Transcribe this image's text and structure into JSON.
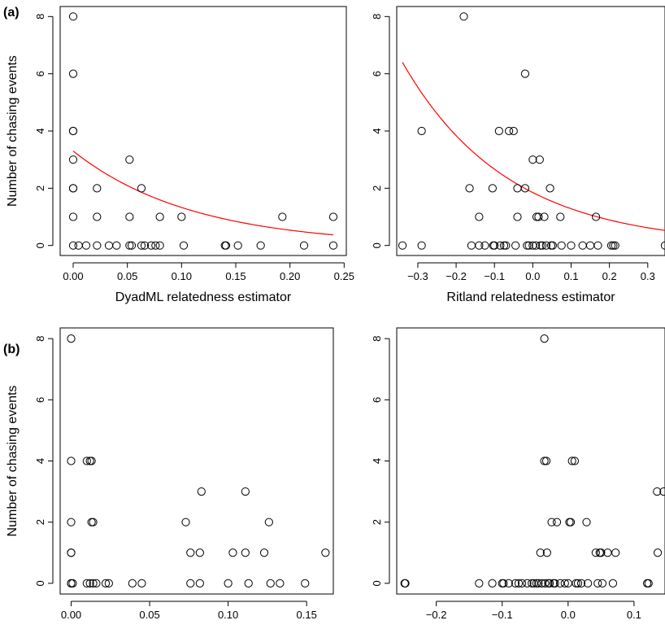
{
  "panel_labels": [
    "(a)",
    "(b)"
  ],
  "chart_data": [
    {
      "type": "scatter",
      "panel": "(a)",
      "xlabel": "DyadML relatedness estimator",
      "ylabel": "Number of chasing events",
      "xlim": [
        -0.012,
        0.252
      ],
      "ylim": [
        -0.35,
        8.35
      ],
      "xticks": [
        0,
        0.05,
        0.1,
        0.15,
        0.2,
        0.25
      ],
      "xticklabels": [
        "0.00",
        "0.05",
        "0.10",
        "0.15",
        "0.20",
        "0.25"
      ],
      "yticks": [
        0,
        2,
        4,
        6,
        8
      ],
      "yticklabels": [
        "0",
        "2",
        "4",
        "6",
        "8"
      ],
      "fit_curve": {
        "color": "#ff0000",
        "intercept_at_x0": 3.3,
        "log_slope": -9.1,
        "x_range": [
          0,
          0.24
        ]
      },
      "points": [
        [
          0,
          8
        ],
        [
          0,
          6
        ],
        [
          0,
          4
        ],
        [
          0,
          4
        ],
        [
          0,
          3
        ],
        [
          0,
          2
        ],
        [
          0,
          2
        ],
        [
          0,
          1
        ],
        [
          0,
          0
        ],
        [
          0.005,
          0
        ],
        [
          0.012,
          0
        ],
        [
          0.022,
          2
        ],
        [
          0.022,
          1
        ],
        [
          0.022,
          0
        ],
        [
          0.033,
          0
        ],
        [
          0.04,
          0
        ],
        [
          0.052,
          3
        ],
        [
          0.052,
          1
        ],
        [
          0.052,
          0
        ],
        [
          0.054,
          0
        ],
        [
          0.063,
          2
        ],
        [
          0.063,
          0
        ],
        [
          0.066,
          0
        ],
        [
          0.072,
          0
        ],
        [
          0.076,
          0
        ],
        [
          0.08,
          1
        ],
        [
          0.08,
          0
        ],
        [
          0.1,
          1
        ],
        [
          0.102,
          0
        ],
        [
          0.14,
          0
        ],
        [
          0.141,
          0
        ],
        [
          0.152,
          0
        ],
        [
          0.173,
          0
        ],
        [
          0.193,
          1
        ],
        [
          0.213,
          0
        ],
        [
          0.24,
          1
        ],
        [
          0.24,
          0
        ]
      ]
    },
    {
      "type": "scatter",
      "panel": "(a)",
      "xlabel": "Ritland relatedness estimator",
      "ylabel": "",
      "xlim": [
        -0.355,
        0.345
      ],
      "ylim": [
        -0.35,
        8.35
      ],
      "xticks": [
        -0.3,
        -0.2,
        -0.1,
        0,
        0.1,
        0.2,
        0.3
      ],
      "xticklabels": [
        "−0.3",
        "−0.2",
        "−0.1",
        "0.0",
        "0.1",
        "0.2",
        "0.3"
      ],
      "yticks": [
        0,
        2,
        4,
        6,
        8
      ],
      "yticklabels": [
        "0",
        "2",
        "4",
        "6",
        "8"
      ],
      "fit_curve": {
        "color": "#ff0000",
        "intercept_at_x0": 1.85,
        "log_slope": -3.65,
        "x_range": [
          -0.34,
          0.345
        ]
      },
      "points": [
        [
          -0.34,
          0
        ],
        [
          -0.29,
          4
        ],
        [
          -0.29,
          0
        ],
        [
          -0.18,
          8
        ],
        [
          -0.165,
          2
        ],
        [
          -0.16,
          0
        ],
        [
          -0.14,
          1
        ],
        [
          -0.14,
          0
        ],
        [
          -0.125,
          0
        ],
        [
          -0.105,
          2
        ],
        [
          -0.103,
          0
        ],
        [
          -0.1,
          0
        ],
        [
          -0.088,
          4
        ],
        [
          -0.085,
          0
        ],
        [
          -0.075,
          0
        ],
        [
          -0.07,
          0
        ],
        [
          -0.062,
          4
        ],
        [
          -0.05,
          4
        ],
        [
          -0.045,
          0
        ],
        [
          -0.04,
          2
        ],
        [
          -0.04,
          1
        ],
        [
          -0.02,
          6
        ],
        [
          -0.02,
          2
        ],
        [
          -0.015,
          0
        ],
        [
          -0.01,
          0
        ],
        [
          0,
          3
        ],
        [
          0,
          0
        ],
        [
          0.008,
          0
        ],
        [
          0.01,
          1
        ],
        [
          0.015,
          1
        ],
        [
          0.018,
          3
        ],
        [
          0.02,
          0
        ],
        [
          0.025,
          0
        ],
        [
          0.03,
          1
        ],
        [
          0.035,
          0
        ],
        [
          0.045,
          2
        ],
        [
          0.048,
          0
        ],
        [
          0.052,
          0
        ],
        [
          0.072,
          1
        ],
        [
          0.075,
          0
        ],
        [
          0.1,
          0
        ],
        [
          0.13,
          0
        ],
        [
          0.15,
          0
        ],
        [
          0.165,
          1
        ],
        [
          0.17,
          0
        ],
        [
          0.205,
          0
        ],
        [
          0.21,
          0
        ],
        [
          0.215,
          0
        ],
        [
          0.345,
          0
        ]
      ]
    },
    {
      "type": "scatter",
      "panel": "(b)",
      "xlabel": "DyadML relatedness estimator",
      "ylabel": "Number of chasing events",
      "xlim": [
        -0.007,
        0.167
      ],
      "ylim": [
        -0.35,
        8.35
      ],
      "xticks": [
        0,
        0.05,
        0.1,
        0.15
      ],
      "xticklabels": [
        "0.00",
        "0.05",
        "0.10",
        "0.15"
      ],
      "yticks": [
        0,
        2,
        4,
        6,
        8
      ],
      "yticklabels": [
        "0",
        "2",
        "4",
        "6",
        "8"
      ],
      "points": [
        [
          0,
          8
        ],
        [
          0,
          4
        ],
        [
          0,
          2
        ],
        [
          0,
          1
        ],
        [
          0,
          1
        ],
        [
          0,
          0
        ],
        [
          0,
          0
        ],
        [
          0.001,
          0
        ],
        [
          0.01,
          4
        ],
        [
          0.012,
          4
        ],
        [
          0.013,
          4
        ],
        [
          0.01,
          0
        ],
        [
          0.012,
          0
        ],
        [
          0.013,
          2
        ],
        [
          0.014,
          2
        ],
        [
          0.014,
          0
        ],
        [
          0.016,
          0
        ],
        [
          0.022,
          0
        ],
        [
          0.024,
          0
        ],
        [
          0.039,
          0
        ],
        [
          0.045,
          0
        ],
        [
          0.073,
          2
        ],
        [
          0.076,
          1
        ],
        [
          0.076,
          0
        ],
        [
          0.082,
          1
        ],
        [
          0.082,
          0
        ],
        [
          0.083,
          3
        ],
        [
          0.1,
          0
        ],
        [
          0.103,
          1
        ],
        [
          0.111,
          3
        ],
        [
          0.111,
          1
        ],
        [
          0.113,
          0
        ],
        [
          0.123,
          1
        ],
        [
          0.126,
          2
        ],
        [
          0.127,
          0
        ],
        [
          0.133,
          0
        ],
        [
          0.149,
          0
        ],
        [
          0.162,
          1
        ]
      ]
    },
    {
      "type": "scatter",
      "panel": "(b)",
      "xlabel": "Ritland relatedness estimator",
      "ylabel": "",
      "xlim": [
        -0.26,
        0.147
      ],
      "ylim": [
        -0.35,
        8.35
      ],
      "xticks": [
        -0.2,
        -0.1,
        0,
        0.1
      ],
      "xticklabels": [
        "−0.2",
        "−0.1",
        "0.0",
        "0.1"
      ],
      "yticks": [
        0,
        2,
        4,
        6,
        8
      ],
      "yticklabels": [
        "0",
        "2",
        "4",
        "6",
        "8"
      ],
      "points": [
        [
          -0.248,
          0
        ],
        [
          -0.247,
          0
        ],
        [
          -0.135,
          0
        ],
        [
          -0.115,
          0
        ],
        [
          -0.1,
          0
        ],
        [
          -0.098,
          0
        ],
        [
          -0.09,
          0
        ],
        [
          -0.08,
          0
        ],
        [
          -0.075,
          0
        ],
        [
          -0.07,
          0
        ],
        [
          -0.062,
          0
        ],
        [
          -0.055,
          0
        ],
        [
          -0.052,
          0
        ],
        [
          -0.048,
          0
        ],
        [
          -0.045,
          0
        ],
        [
          -0.042,
          1
        ],
        [
          -0.04,
          0
        ],
        [
          -0.036,
          8
        ],
        [
          -0.036,
          4
        ],
        [
          -0.035,
          0
        ],
        [
          -0.033,
          4
        ],
        [
          -0.032,
          1
        ],
        [
          -0.03,
          0
        ],
        [
          -0.028,
          0
        ],
        [
          -0.025,
          2
        ],
        [
          -0.022,
          0
        ],
        [
          -0.02,
          0
        ],
        [
          -0.017,
          2
        ],
        [
          -0.012,
          0
        ],
        [
          -0.005,
          0
        ],
        [
          0,
          0
        ],
        [
          0.002,
          2
        ],
        [
          0.004,
          2
        ],
        [
          0.006,
          4
        ],
        [
          0.01,
          4
        ],
        [
          0.012,
          0
        ],
        [
          0.015,
          0
        ],
        [
          0.02,
          0
        ],
        [
          0.028,
          2
        ],
        [
          0.03,
          0
        ],
        [
          0.042,
          1
        ],
        [
          0.045,
          0
        ],
        [
          0.048,
          1
        ],
        [
          0.05,
          1
        ],
        [
          0.052,
          0
        ],
        [
          0.06,
          1
        ],
        [
          0.068,
          0
        ],
        [
          0.072,
          1
        ],
        [
          0.12,
          0
        ],
        [
          0.122,
          0
        ],
        [
          0.135,
          3
        ],
        [
          0.136,
          1
        ],
        [
          0.145,
          3
        ]
      ]
    }
  ]
}
